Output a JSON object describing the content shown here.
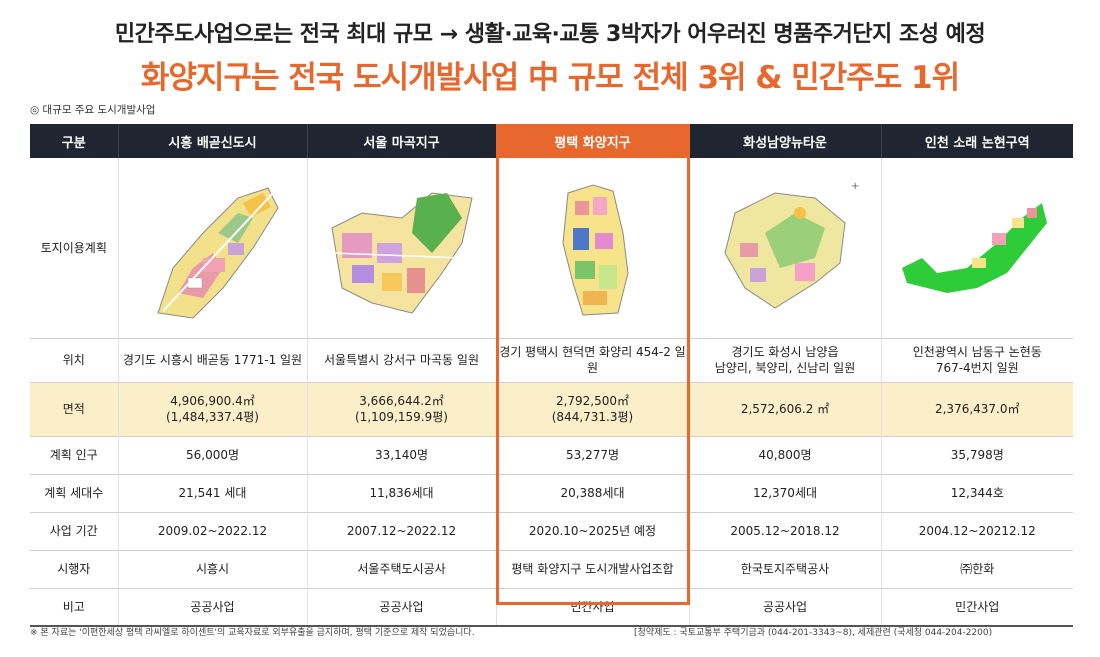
{
  "headline": "민간주도사업으로는 전국 최대 규모 → 생활·교육·교통 3박자가 어우러진 명품주거단지 조성 예정",
  "subheadline": "화양지구는 전국 도시개발사업 中 규모 전체 3위 & 민간주도 1위",
  "accent_color": "#e8672c",
  "header_bg": "#1f2531",
  "area_row_bg": "#fbefc9",
  "section_label": "◎ 대규모 주요 도시개발사업",
  "table": {
    "corner": "구분",
    "columns": [
      "시흥 배곧신도시",
      "서울 마곡지구",
      "평택 화양지구",
      "화성남양뉴타운",
      "인천 소래 논현구역"
    ],
    "highlight_index": 2,
    "rows": [
      {
        "label": "토지이용계획",
        "type": "map",
        "cells": [
          "",
          "",
          "",
          "",
          ""
        ]
      },
      {
        "label": "위치",
        "type": "loc",
        "cells": [
          [
            "경기도 시흥시 배곧동 1771-1 일원"
          ],
          [
            "서울특별시 강서구 마곡동 일원"
          ],
          [
            "경기 평택시 현덕면 화양리 454-2 일원"
          ],
          [
            "경기도 화성시 남양읍",
            "남양리, 북양리, 신남리 일원"
          ],
          [
            "인천광역시 남동구 논현동",
            "767-4번지 일원"
          ]
        ]
      },
      {
        "label": "면적",
        "type": "area",
        "cells": [
          [
            "4,906,900.4㎡",
            "(1,484,337.4평)"
          ],
          [
            "3,666,644.2㎡",
            "(1,109,159.9평)"
          ],
          [
            "2,792,500㎡",
            "(844,731.3평)"
          ],
          [
            "2,572,606.2 ㎡"
          ],
          [
            "2,376,437.0㎡"
          ]
        ]
      },
      {
        "label": "계획 인구",
        "type": "std",
        "cells": [
          [
            "56,000명"
          ],
          [
            "33,140명"
          ],
          [
            "53,277명"
          ],
          [
            "40,800명"
          ],
          [
            "35,798명"
          ]
        ]
      },
      {
        "label": "계획 세대수",
        "type": "std",
        "cells": [
          [
            "21,541 세대"
          ],
          [
            "11,836세대"
          ],
          [
            "20,388세대"
          ],
          [
            "12,370세대"
          ],
          [
            "12,344호"
          ]
        ]
      },
      {
        "label": "사업 기간",
        "type": "std",
        "cells": [
          [
            "2009.02~2022.12"
          ],
          [
            "2007.12~2022.12"
          ],
          [
            "2020.10~2025년 예정"
          ],
          [
            "2005.12~2018.12"
          ],
          [
            "2004.12~20212.12"
          ]
        ]
      },
      {
        "label": "시행자",
        "type": "std",
        "cells": [
          [
            "시흥시"
          ],
          [
            "서울주택도시공사"
          ],
          [
            "평택 화양지구 도시개발사업조합"
          ],
          [
            "한국토지주택공사"
          ],
          [
            "㈜한화"
          ]
        ]
      },
      {
        "label": "비고",
        "type": "last",
        "cells": [
          [
            "공공사업"
          ],
          [
            "공공사업"
          ],
          [
            "민간사업"
          ],
          [
            "공공사업"
          ],
          [
            "민간사업"
          ]
        ]
      }
    ]
  },
  "footnote": "※ 본 자료는 '이편한세상 평택 라씨엘로 하이센트'의 교육자료로 외부유출을 금지하며, 평택 기준으로 제작 되었습니다.",
  "contact": "[청약제도 : 국토교통부 주택기금과 (044-201-3343~8), 세제관련 (국세청 044-204-2200)"
}
